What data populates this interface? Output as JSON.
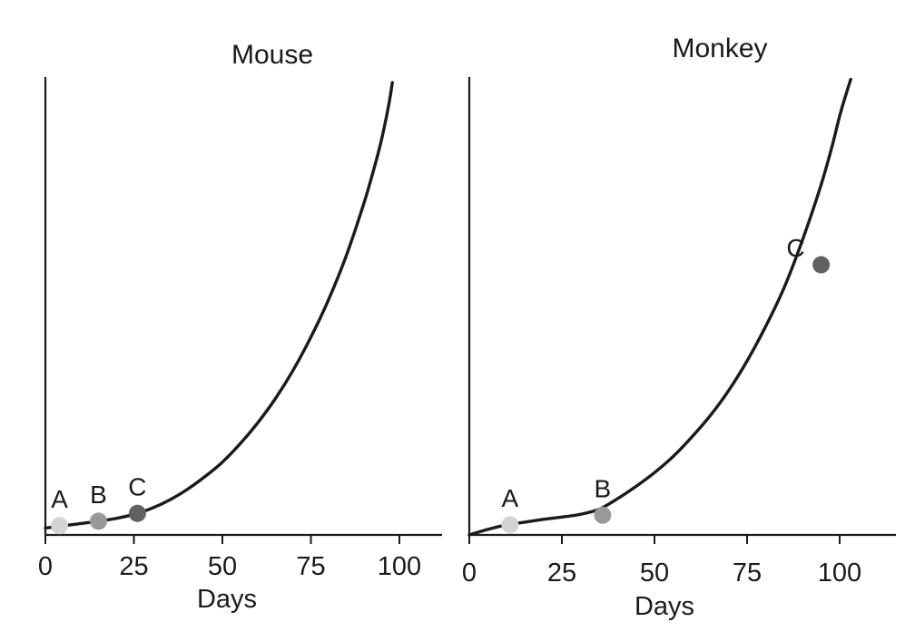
{
  "chart_data": [
    {
      "type": "line",
      "title": "Mouse",
      "xlabel": "Days",
      "ylabel": "",
      "xlim": [
        0,
        110
      ],
      "ylim": [
        0,
        100
      ],
      "xticks": [
        0,
        25,
        50,
        75,
        100
      ],
      "xtick_labels": [
        "0",
        "25",
        "50",
        "75",
        "100"
      ],
      "grid": false,
      "series": [
        {
          "curve": {
            "x": [
              0,
              5,
              10,
              15,
              20,
              25,
              30,
              35,
              40,
              45,
              50,
              55,
              60,
              65,
              70,
              75,
              80,
              85,
              90,
              93,
              95,
              97,
              98
            ],
            "y": [
              1.5,
              2.0,
              2.5,
              3.0,
              3.6,
              4.5,
              5.8,
              7.6,
              9.9,
              12.7,
              15.9,
              19.9,
              24.5,
              29.8,
              36.0,
              43.2,
              51.4,
              61.0,
              72.5,
              80.5,
              86.5,
              94.0,
              98.8
            ]
          },
          "points": [
            {
              "label": "A",
              "x": 4,
              "y": 2.0,
              "color": "#d3d3d3"
            },
            {
              "label": "B",
              "x": 15,
              "y": 3.0,
              "color": "#999999"
            },
            {
              "label": "C",
              "x": 26,
              "y": 4.7,
              "color": "#616161"
            }
          ]
        }
      ]
    },
    {
      "type": "line",
      "title": "Monkey",
      "xlabel": "Days",
      "ylabel": "",
      "xlim": [
        0,
        115
      ],
      "ylim": [
        0,
        100
      ],
      "xticks": [
        0,
        25,
        50,
        75,
        100
      ],
      "xtick_labels": [
        "0",
        "25",
        "50",
        "75",
        "100"
      ],
      "grid": false,
      "series": [
        {
          "curve": {
            "x": [
              0,
              5,
              10,
              15,
              20,
              25,
              30,
              35,
              40,
              45,
              50,
              55,
              60,
              65,
              70,
              75,
              80,
              85,
              90,
              95,
              98,
              100,
              102,
              103
            ],
            "y": [
              0,
              1.2,
              2.2,
              2.8,
              3.4,
              3.9,
              4.5,
              5.6,
              7.9,
              10.6,
              13.6,
              17.1,
              21.3,
              26.0,
              31.5,
              38.0,
              45.5,
              54.0,
              64.5,
              76.5,
              85.0,
              91.5,
              97.0,
              99.5
            ]
          },
          "points": [
            {
              "label": "A",
              "x": 11,
              "y": 2.2,
              "color": "#d3d3d3"
            },
            {
              "label": "B",
              "x": 36,
              "y": 4.3,
              "color": "#999999"
            },
            {
              "label": "C",
              "x": 95,
              "y": 59.0,
              "color": "#616161"
            }
          ]
        }
      ]
    }
  ]
}
